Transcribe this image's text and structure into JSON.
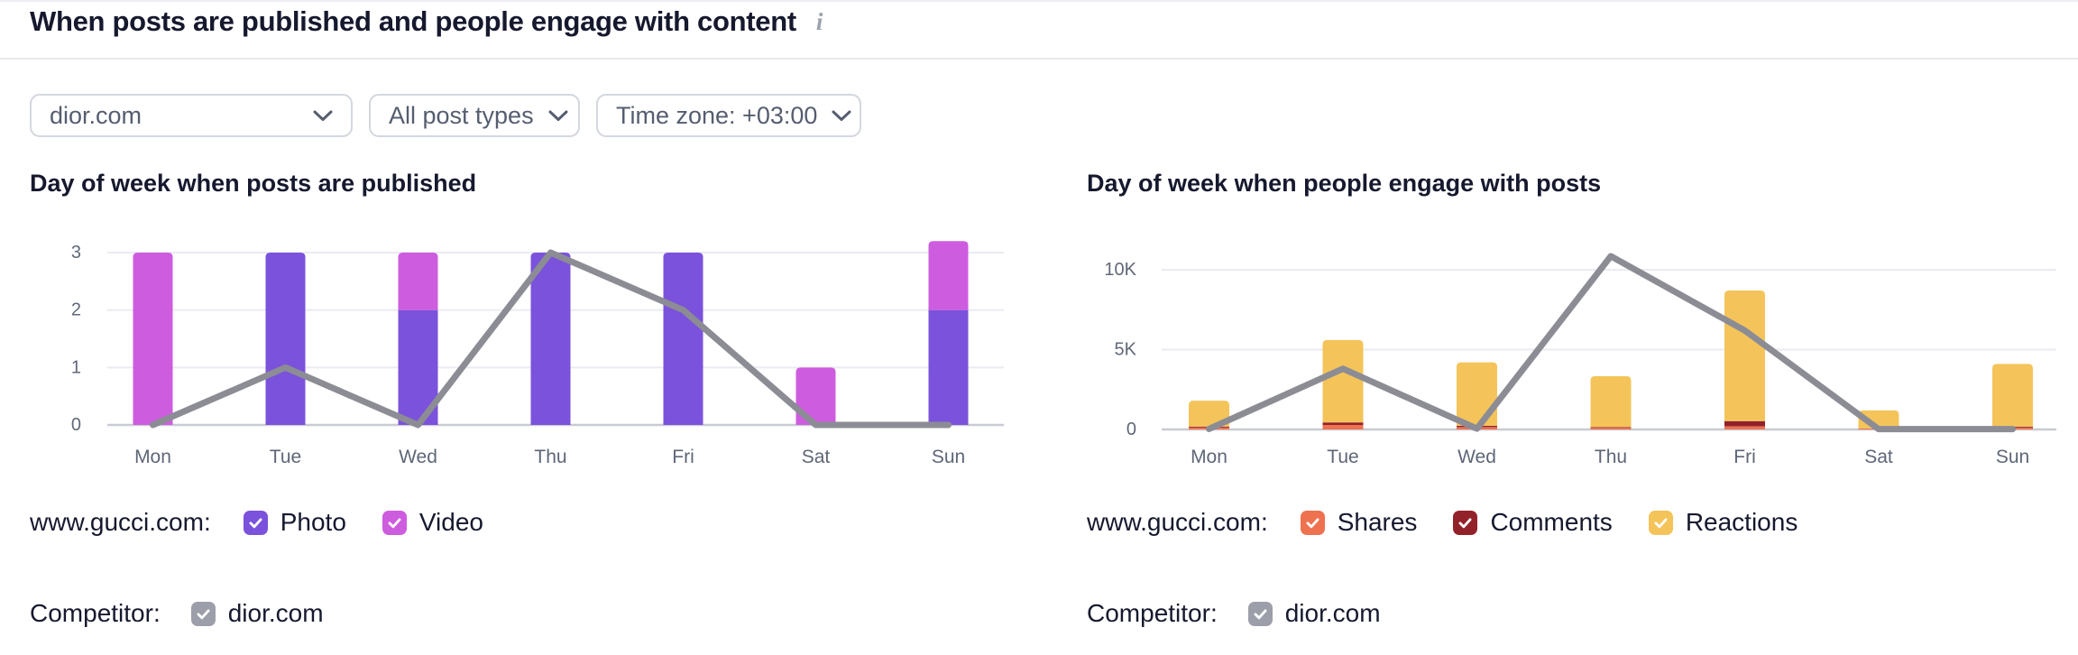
{
  "header": {
    "title": "When posts are published and people engage with content",
    "info_glyph": "i"
  },
  "filters": {
    "profile": {
      "label": "dior.com"
    },
    "post_type": {
      "label": "All post types"
    },
    "timezone": {
      "label": "Time zone: +03:00"
    }
  },
  "legends": [
    {
      "owner": "www.gucci.com:",
      "items": [
        {
          "label": "Photo",
          "color": "#7B52DB",
          "checked": true
        },
        {
          "label": "Video",
          "color": "#CE5CDF",
          "checked": true
        }
      ],
      "competitor": {
        "label": "Competitor:",
        "name": "dior.com",
        "checked": true,
        "color": "#9C9FA9"
      }
    },
    {
      "owner": "www.gucci.com:",
      "items": [
        {
          "label": "Shares",
          "color": "#EE7150",
          "checked": true
        },
        {
          "label": "Comments",
          "color": "#93212A",
          "checked": true
        },
        {
          "label": "Reactions",
          "color": "#F4C45A",
          "checked": true
        }
      ],
      "competitor": {
        "label": "Competitor:",
        "name": "dior.com",
        "checked": true,
        "color": "#9C9FA9"
      }
    }
  ],
  "chart_data": [
    {
      "type": "bar",
      "subtype": "stacked-bars-with-line-overlay",
      "title": "Day of week when posts are published",
      "categories": [
        "Mon",
        "Tue",
        "Wed",
        "Thu",
        "Fri",
        "Sat",
        "Sun"
      ],
      "series": [
        {
          "name": "Photo",
          "render": "bar",
          "color": "#7B52DB",
          "values": [
            0,
            3,
            2,
            3,
            3,
            0,
            2
          ]
        },
        {
          "name": "Video",
          "render": "bar",
          "color": "#CE5CDF",
          "values": [
            3,
            0,
            1,
            0,
            0,
            1,
            1.2
          ]
        },
        {
          "name": "dior.com",
          "render": "line",
          "color": "#8C8C95",
          "values": [
            0,
            1,
            0,
            3,
            2,
            0,
            0
          ]
        }
      ],
      "yticks": [
        0,
        1,
        2,
        3
      ],
      "ytick_labels": [
        "0",
        "1",
        "2",
        "3"
      ],
      "ylim": [
        0,
        3.3
      ],
      "grid": "horizontal",
      "legend_position": "bottom"
    },
    {
      "type": "bar",
      "subtype": "stacked-bars-with-line-overlay",
      "title": "Day of week when people engage with posts",
      "categories": [
        "Mon",
        "Tue",
        "Wed",
        "Thu",
        "Fri",
        "Sat",
        "Sun"
      ],
      "series": [
        {
          "name": "Shares",
          "render": "bar",
          "color": "#EE7150",
          "values": [
            120,
            280,
            150,
            100,
            200,
            60,
            120
          ]
        },
        {
          "name": "Comments",
          "render": "bar",
          "color": "#93212A",
          "values": [
            60,
            160,
            80,
            40,
            320,
            0,
            60
          ]
        },
        {
          "name": "Reactions",
          "render": "bar",
          "color": "#F4C45A",
          "values": [
            1620,
            5160,
            3970,
            3200,
            8180,
            1130,
            3920
          ]
        },
        {
          "name": "dior.com",
          "render": "line",
          "color": "#8C8C95",
          "values": [
            30,
            3800,
            50,
            10850,
            6200,
            20,
            20
          ]
        }
      ],
      "yticks": [
        0,
        5000,
        10000
      ],
      "ytick_labels": [
        "0",
        "5K",
        "10K"
      ],
      "ylim": [
        0,
        11000
      ],
      "grid": "horizontal",
      "legend_position": "bottom"
    }
  ]
}
